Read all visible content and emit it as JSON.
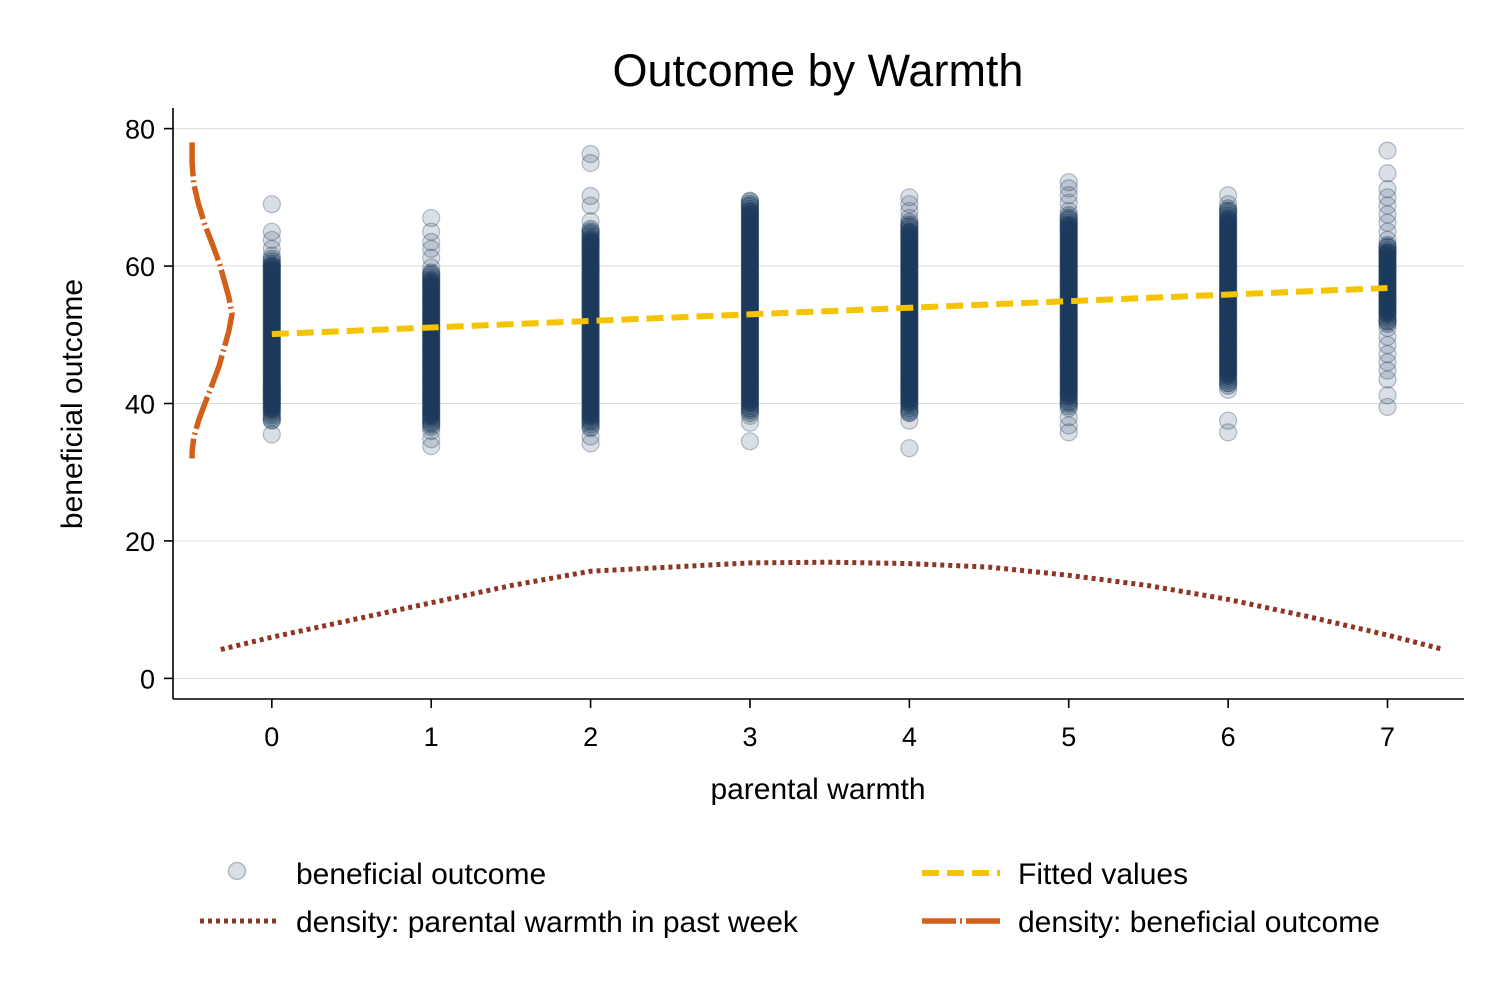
{
  "chart_data": {
    "type": "scatter",
    "title": "Outcome by Warmth",
    "xlabel": "parental warmth",
    "ylabel": "beneficial outcome",
    "xlim": [
      -0.62,
      7.48
    ],
    "ylim": [
      -3,
      83
    ],
    "x_ticks": [
      0,
      1,
      2,
      3,
      4,
      5,
      6,
      7
    ],
    "y_ticks": [
      0,
      20,
      40,
      60,
      80
    ],
    "grid": true,
    "legend_position": "bottom",
    "colors": {
      "scatter": "#1b3a5c",
      "fitted": "#f5c400",
      "density_warmth": "#8f3524",
      "density_outcome": "#d2601a"
    },
    "series": [
      {
        "name": "beneficial outcome",
        "kind": "scatter",
        "columns": [
          {
            "x": 0,
            "dense": [
              39,
              60
            ],
            "sparse": [
              35.5,
              37.5,
              40.8,
              42,
              61.5,
              62.5,
              63.8,
              65,
              69
            ]
          },
          {
            "x": 1,
            "dense": [
              38,
              58
            ],
            "sparse": [
              33.8,
              34.8,
              36,
              37.2,
              58.8,
              59.8,
              61.2,
              62.5,
              63.5,
              65,
              67
            ]
          },
          {
            "x": 2,
            "dense": [
              38,
              64
            ],
            "sparse": [
              34.2,
              35.2,
              36.4,
              37.5,
              64.8,
              66.5,
              68.8,
              70.2,
              75,
              76.3
            ]
          },
          {
            "x": 3,
            "dense": [
              40,
              68
            ],
            "sparse": [
              34.5,
              37.2,
              38.2,
              39.2,
              68.8,
              69.5
            ]
          },
          {
            "x": 4,
            "dense": [
              40,
              65
            ],
            "sparse": [
              33.5,
              37.5,
              38.7,
              65.8,
              67,
              68,
              69,
              70
            ]
          },
          {
            "x": 5,
            "dense": [
              41,
              66
            ],
            "sparse": [
              35.8,
              36.8,
              38,
              39.3,
              40.2,
              66.8,
              68,
              69.2,
              70.3,
              71.3,
              72.2
            ]
          },
          {
            "x": 6,
            "dense": [
              44,
              67
            ],
            "sparse": [
              35.8,
              37.5,
              42,
              43,
              68,
              69,
              70.3
            ]
          },
          {
            "x": 7,
            "dense": [
              53,
              62
            ],
            "sparse": [
              39.5,
              41.2,
              43.5,
              44.8,
              46,
              47.2,
              48.5,
              49.7,
              51,
              52,
              62.8,
              63.8,
              65,
              66.3,
              67.5,
              68.8,
              70,
              71.2,
              73.5,
              76.8
            ]
          }
        ]
      },
      {
        "name": "Fitted values",
        "kind": "line",
        "style": "dashed",
        "x": [
          0,
          7
        ],
        "y": [
          50.1,
          56.8
        ]
      },
      {
        "name": "density: parental warmth in past week",
        "kind": "line",
        "style": "dotted",
        "x": [
          -0.32,
          0,
          0.5,
          1,
          1.5,
          2,
          2.5,
          3,
          3.5,
          4,
          4.5,
          5,
          5.5,
          6,
          6.5,
          7,
          7.35
        ],
        "y": [
          4.2,
          6,
          8.5,
          11,
          13.5,
          15.6,
          16.2,
          16.8,
          16.9,
          16.7,
          16.2,
          15,
          13.5,
          11.5,
          9,
          6.3,
          4.2
        ]
      },
      {
        "name": "density: beneficial outcome",
        "kind": "line",
        "style": "dash-dot",
        "x": [
          -0.5,
          -0.5,
          -0.49,
          -0.46,
          -0.42,
          -0.37,
          -0.33,
          -0.3,
          -0.27,
          -0.25,
          -0.27,
          -0.3,
          -0.33,
          -0.37,
          -0.42,
          -0.46,
          -0.49,
          -0.5,
          -0.5
        ],
        "y": [
          78,
          75,
          72,
          69,
          66,
          63,
          60.5,
          58,
          55.5,
          53,
          50.5,
          48,
          45.5,
          43,
          40,
          37.5,
          35,
          33,
          32
        ]
      }
    ]
  }
}
